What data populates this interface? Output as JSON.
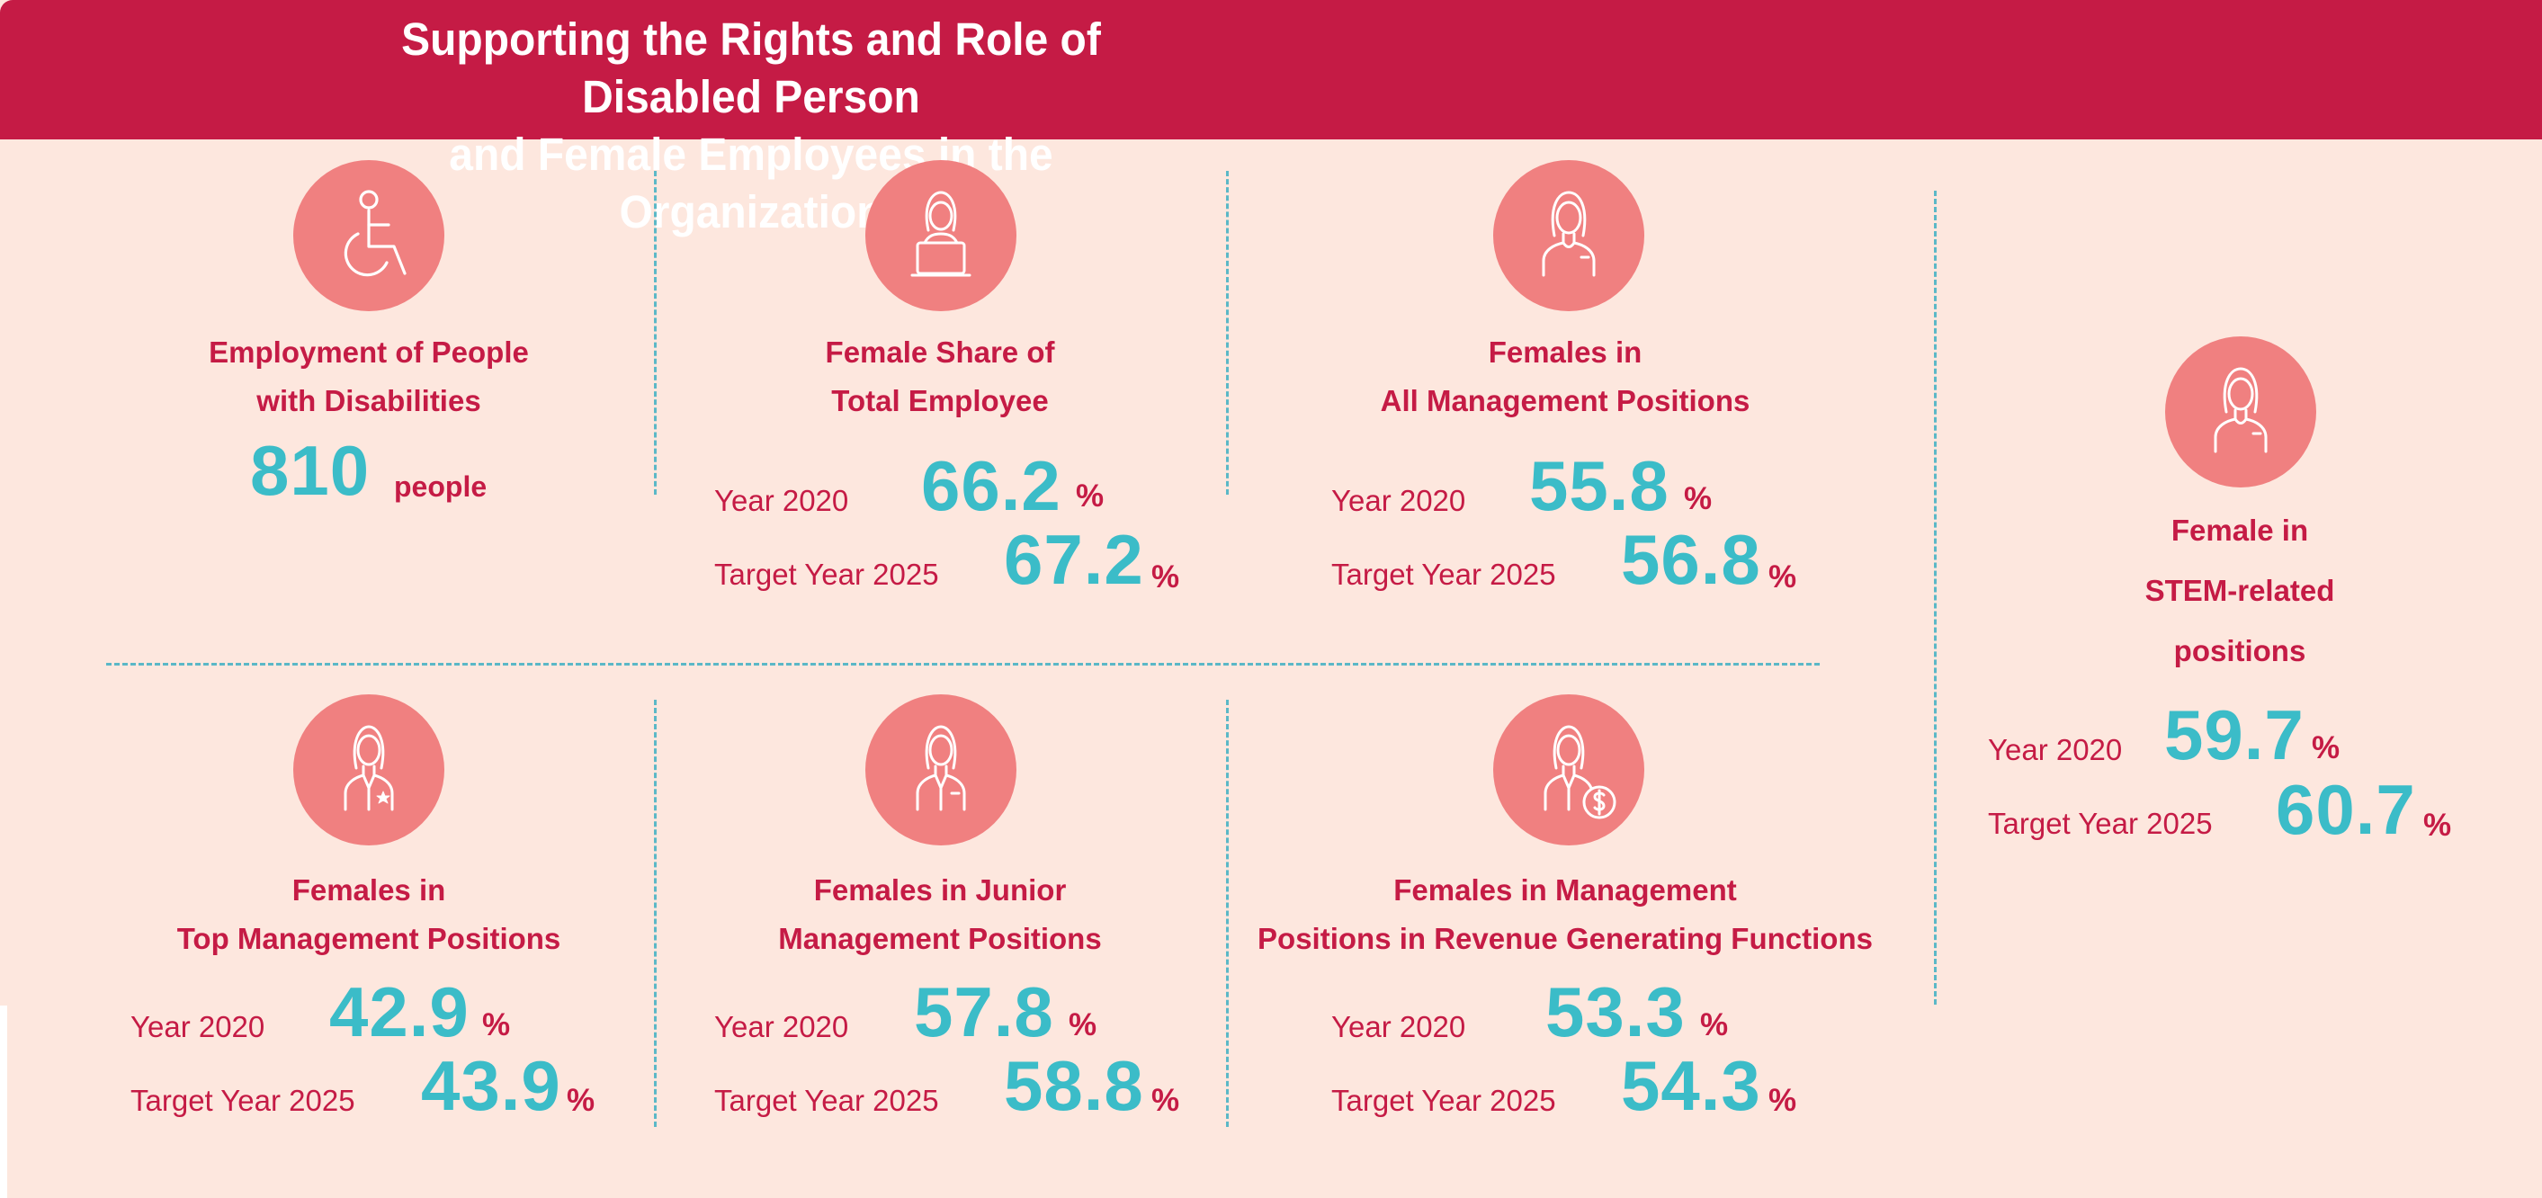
{
  "title": {
    "line1": "Supporting the Rights and Role of Disabled Person",
    "line2": "and Female Employees in the Organization"
  },
  "colors": {
    "header": "#c51b45",
    "background": "#fde7de",
    "accent_value": "#3bbcc8",
    "label_text": "#c51b45",
    "icon_circle": "#f08080",
    "divider": "#5bb8c7"
  },
  "disabilities": {
    "icon": "wheelchair-icon",
    "label1": "Employment of People",
    "label2": "with Disabilities",
    "value": "810",
    "unit": "people"
  },
  "female_share": {
    "icon": "woman-laptop-icon",
    "label1": "Female Share of",
    "label2": "Total Employee",
    "year_label": "Year 2020",
    "year_value": "66.2",
    "target_label": "Target Year 2025",
    "target_value": "67.2",
    "unit": "%"
  },
  "all_management": {
    "icon": "woman-icon",
    "label1": "Females in",
    "label2": "All Management Positions",
    "year_label": "Year 2020",
    "year_value": "55.8",
    "target_label": "Target Year 2025",
    "target_value": "56.8",
    "unit": "%"
  },
  "stem": {
    "icon": "woman-icon",
    "label1": "Female in",
    "label2": "STEM-related",
    "label3": "positions",
    "year_label": "Year 2020",
    "year_value": "59.7",
    "target_label": "Target Year 2025",
    "target_value": "60.7",
    "unit": "%"
  },
  "top_management": {
    "icon": "woman-star-icon",
    "label1": "Females in",
    "label2": "Top Management Positions",
    "year_label": "Year 2020",
    "year_value": "42.9",
    "target_label": "Target Year 2025",
    "target_value": "43.9",
    "unit": "%"
  },
  "junior_management": {
    "icon": "woman-suit-icon",
    "label1": "Females in Junior",
    "label2": "Management Positions",
    "year_label": "Year 2020",
    "year_value": "57.8",
    "target_label": "Target Year 2025",
    "target_value": "58.8",
    "unit": "%"
  },
  "revenue_management": {
    "icon": "woman-dollar-icon",
    "label1": "Females in Management",
    "label2": "Positions in Revenue Generating Functions",
    "year_label": "Year 2020",
    "year_value": "53.3",
    "target_label": "Target Year 2025",
    "target_value": "54.3",
    "unit": "%"
  }
}
